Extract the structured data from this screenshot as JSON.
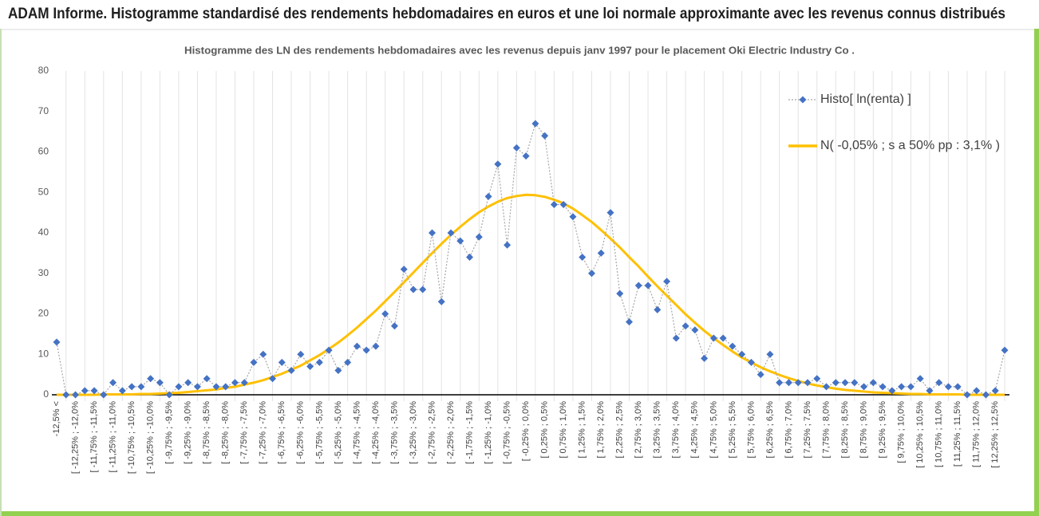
{
  "page_title": "ADAM Informe. Histogramme standardisé des rendements hebdomadaires en euros et une loi normale approximante avec les revenus connus distribués",
  "chart_data": {
    "type": "line",
    "title": "Histogramme des LN des rendements hebdomadaires avec les revenus depuis janv 1997 pour le placement Oki Electric Industry Co .",
    "categories": [
      "-12,5% <",
      null,
      "[ -12,25% ; -12,0%",
      null,
      "[ -11,75% ; -11,5%",
      null,
      "[ -11,25% ; -11,0%",
      null,
      "[ -10,75% ; -10,5%",
      null,
      "[ -10,25% ; -10,0%",
      null,
      "[ -9,75% ; -9,5%",
      null,
      "[ -9,25% ; -9,0%",
      null,
      "[ -8,75% ; -8,5%",
      null,
      "[ -8,25% ; -8,0%",
      null,
      "[ -7,75% ; -7,5%",
      null,
      "[ -7,25% ; -7,0%",
      null,
      "[ -6,75% ; -6,5%",
      null,
      "[ -6,25% ; -6,0%",
      null,
      "[ -5,75% ; -5,5%",
      null,
      "[ -5,25% ; -5,0%",
      null,
      "[ -4,75% ; -4,5%",
      null,
      "[ -4,25% ; -4,0%",
      null,
      "[ -3,75% ; -3,5%",
      null,
      "[ -3,25% ; -3,0%",
      null,
      "[ -2,75% ; -2,5%",
      null,
      "[ -2,25% ; -2,0%",
      null,
      "[ -1,75% ; -1,5%",
      null,
      "[ -1,25% ; -1,0%",
      null,
      "[ -0,75% ; -0,5%",
      null,
      "[ -0,25% ; 0,0%",
      null,
      "[ 0,25% ; 0,5%",
      null,
      "[ 0,75% ; 1,0%",
      null,
      "[ 1,25% ; 1,5%",
      null,
      "[ 1,75% ; 2,0%",
      null,
      "[ 2,25% ; 2,5%",
      null,
      "[ 2,75% ; 3,0%",
      null,
      "[ 3,25% ; 3,5%",
      null,
      "[ 3,75% ; 4,0%",
      null,
      "[ 4,25% ; 4,5%",
      null,
      "[ 4,75% ; 5,0%",
      null,
      "[ 5,25% ; 5,5%",
      null,
      "[ 5,75% ; 6,0%",
      null,
      "[ 6,25% ; 6,5%",
      null,
      "[ 6,75% ; 7,0%",
      null,
      "[ 7,25% ; 7,5%",
      null,
      "[ 7,75% ; 8,0%",
      null,
      "[ 8,25% ; 8,5%",
      null,
      "[ 8,75% ; 9,0%",
      null,
      "[ 9,25% ; 9,5%",
      null,
      "[ 9,75% ; 10,0%",
      null,
      "[ 10,25% ; 10,5%",
      null,
      "[ 10,75% ; 11,0%",
      null,
      "[ 11,25% ; 11,5%",
      null,
      "[ 11,75% ; 12,0%",
      null,
      "[ 12,25% ; 12,5%",
      null
    ],
    "series": [
      {
        "name": "Histo[ ln(renta) ]",
        "color": "#4472c4",
        "line_color": "#a6a6a6",
        "values": [
          13,
          0,
          0,
          1,
          1,
          0,
          3,
          1,
          2,
          2,
          4,
          3,
          0,
          2,
          3,
          2,
          4,
          2,
          2,
          3,
          3,
          8,
          10,
          4,
          8,
          6,
          10,
          7,
          8,
          11,
          6,
          8,
          12,
          11,
          12,
          20,
          17,
          31,
          26,
          26,
          40,
          23,
          40,
          38,
          34,
          39,
          49,
          57,
          37,
          61,
          59,
          67,
          64,
          47,
          47,
          44,
          34,
          30,
          35,
          45,
          25,
          18,
          27,
          27,
          21,
          28,
          14,
          17,
          16,
          9,
          14,
          14,
          12,
          10,
          8,
          5,
          10,
          3,
          3,
          3,
          3,
          4,
          2,
          3,
          3,
          3,
          2,
          3,
          2,
          1,
          2,
          2,
          4,
          1,
          3,
          2,
          2,
          0,
          1,
          0,
          1,
          11
        ]
      },
      {
        "name": "N( -0,05% ; s a 50% pp : 3,1% )",
        "color": "#ffc000",
        "values": [
          0,
          0,
          0,
          0,
          0,
          0.1,
          0.1,
          0.1,
          0.1,
          0.2,
          0.2,
          0.3,
          0.4,
          0.5,
          0.7,
          0.9,
          1.1,
          1.3,
          1.7,
          2.0,
          2.5,
          3.0,
          3.6,
          4.4,
          5.2,
          6.2,
          7.2,
          8.5,
          9.8,
          11.3,
          12.9,
          14.7,
          16.6,
          18.7,
          20.8,
          23.1,
          25.4,
          27.8,
          30.2,
          32.6,
          35.0,
          37.3,
          39.5,
          41.5,
          43.4,
          45.1,
          46.5,
          47.7,
          48.6,
          49.1,
          49.4,
          49.3,
          48.9,
          48.2,
          47.3,
          46.0,
          44.4,
          42.7,
          40.7,
          38.6,
          36.4,
          34.0,
          31.7,
          29.2,
          26.8,
          24.5,
          22.2,
          19.9,
          17.8,
          15.8,
          14.0,
          12.3,
          10.7,
          9.2,
          8.0,
          6.8,
          5.8,
          4.9,
          4.1,
          3.4,
          2.8,
          2.3,
          1.9,
          1.5,
          1.2,
          1.0,
          0.8,
          0.6,
          0.5,
          0.4,
          0.3,
          0.2,
          0.2,
          0.1,
          0.1,
          0.1,
          0.1,
          0,
          0,
          0,
          0,
          0
        ]
      }
    ],
    "ylim": [
      0,
      80
    ],
    "yticks": [
      0,
      10,
      20,
      30,
      40,
      50,
      60,
      70,
      80
    ],
    "legend": "top-right"
  }
}
